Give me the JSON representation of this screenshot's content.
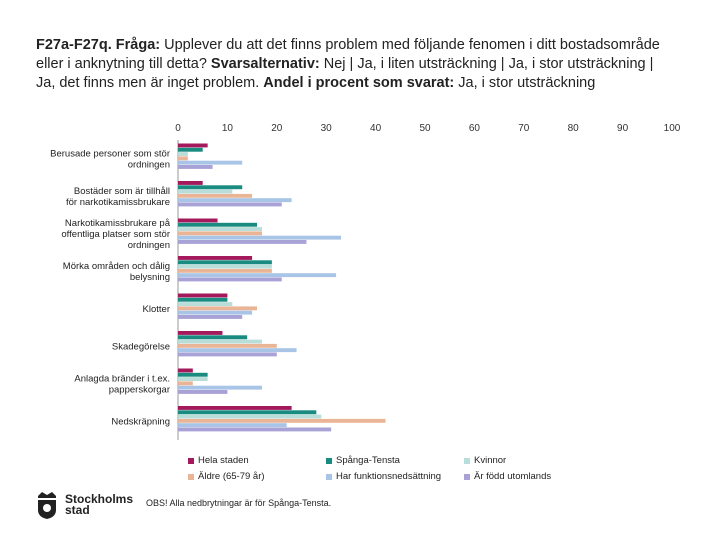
{
  "title": {
    "q_id": "F27a-F27q.",
    "q_label": "Fråga:",
    "q_text": "Upplever du att det finns problem med följande fenomen i ditt bostadsområde eller i anknytning till detta?",
    "alt_label": "Svarsalternativ:",
    "alt_text": "Nej | Ja, i liten utsträckning | Ja, i stor utsträckning | Ja, det finns men är inget problem.",
    "share_label": "Andel i procent som svarat:",
    "share_text": "Ja, i stor utsträckning"
  },
  "note": "OBS! Alla nedbrytningar är för Spånga-Tensta.",
  "logo": {
    "line1": "Stockholms",
    "line2": "stad"
  },
  "chart_data": {
    "type": "bar",
    "orientation": "horizontal",
    "xlim": [
      0,
      100
    ],
    "ticks": [
      "0",
      "10",
      "20",
      "30",
      "40",
      "50",
      "60",
      "70",
      "80",
      "90",
      "100"
    ],
    "categories": [
      "Berusade personer som stör ordningen",
      "Bostäder som är tillhåll för narkotikamissbrukare",
      "Narkotikamissbrukare på offentliga platser som stör ordningen",
      "Mörka områden och dålig belysning",
      "Klotter",
      "Skadegörelse",
      "Anlagda bränder i t.ex. papperskorgar",
      "Nedskräpning"
    ],
    "series": [
      {
        "name": "Hela staden",
        "color": "#a3195b",
        "values": [
          6,
          5,
          8,
          15,
          10,
          9,
          3,
          23
        ]
      },
      {
        "name": "Spånga-Tensta",
        "color": "#1a8b80",
        "values": [
          5,
          13,
          16,
          19,
          10,
          14,
          6,
          28
        ]
      },
      {
        "name": "Kvinnor",
        "color": "#b9ded9",
        "values": [
          2,
          11,
          17,
          19,
          11,
          17,
          6,
          29
        ]
      },
      {
        "name": "Äldre (65-79 år)",
        "color": "#eab596",
        "values": [
          2,
          15,
          17,
          19,
          16,
          20,
          3,
          42
        ]
      },
      {
        "name": "Har funktionsnedsättning",
        "color": "#a8c4e6",
        "values": [
          13,
          23,
          33,
          32,
          15,
          24,
          17,
          22
        ]
      },
      {
        "name": "Är född utomlands",
        "color": "#a9a2d6",
        "values": [
          7,
          21,
          26,
          21,
          13,
          20,
          10,
          31
        ]
      }
    ]
  }
}
